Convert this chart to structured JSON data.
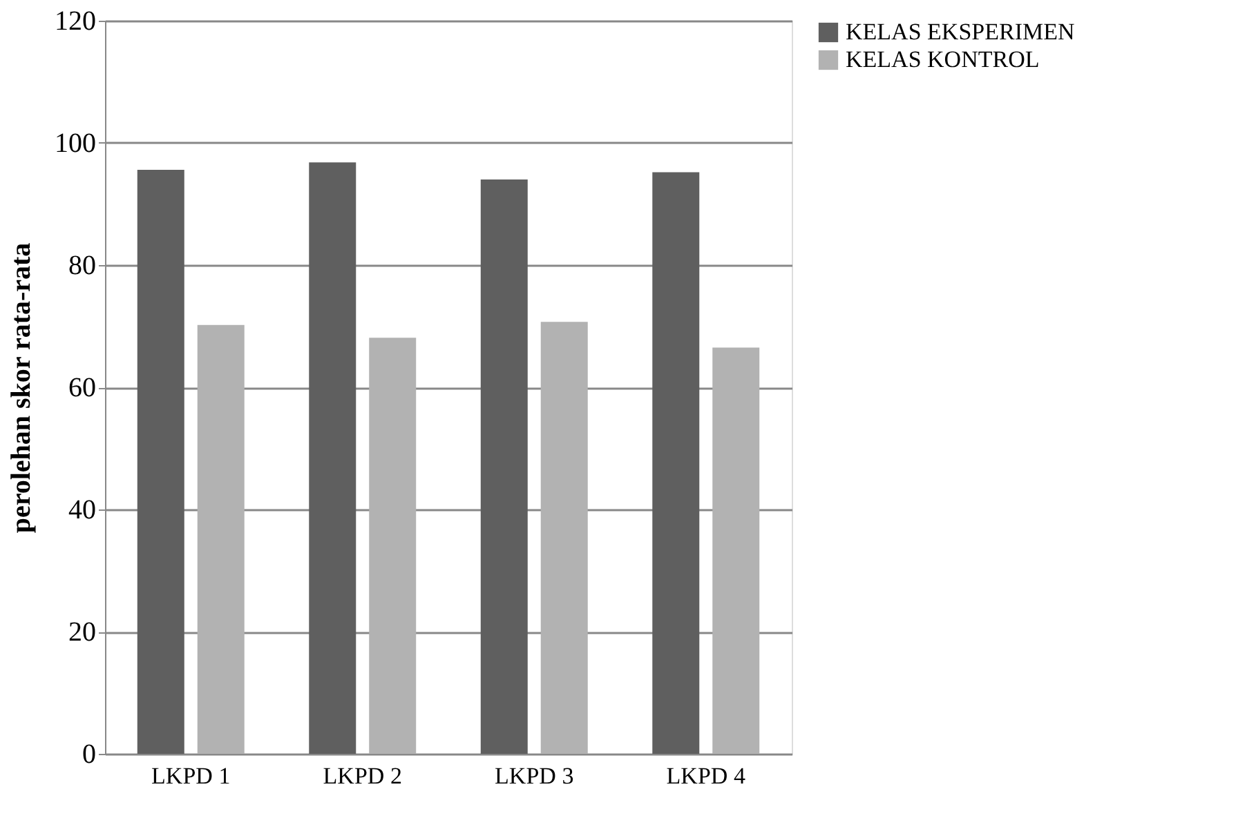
{
  "chart_data": {
    "type": "bar",
    "ylabel": "perolehan skor rata-rata",
    "categories": [
      "LKPD 1",
      "LKPD 2",
      "LKPD 3",
      "LKPD 4"
    ],
    "series": [
      {
        "name": "KELAS EKSPERIMEN",
        "color": "#5f5f5f",
        "values": [
          95.6,
          96.8,
          94.0,
          95.2
        ]
      },
      {
        "name": "KELAS KONTROL",
        "color": "#b2b2b2",
        "values": [
          70.2,
          68.1,
          70.7,
          66.5
        ]
      }
    ],
    "ylim": [
      0,
      120
    ],
    "yticks": [
      0,
      20,
      40,
      60,
      80,
      100,
      120
    ],
    "grid": "y",
    "legend": "right"
  }
}
